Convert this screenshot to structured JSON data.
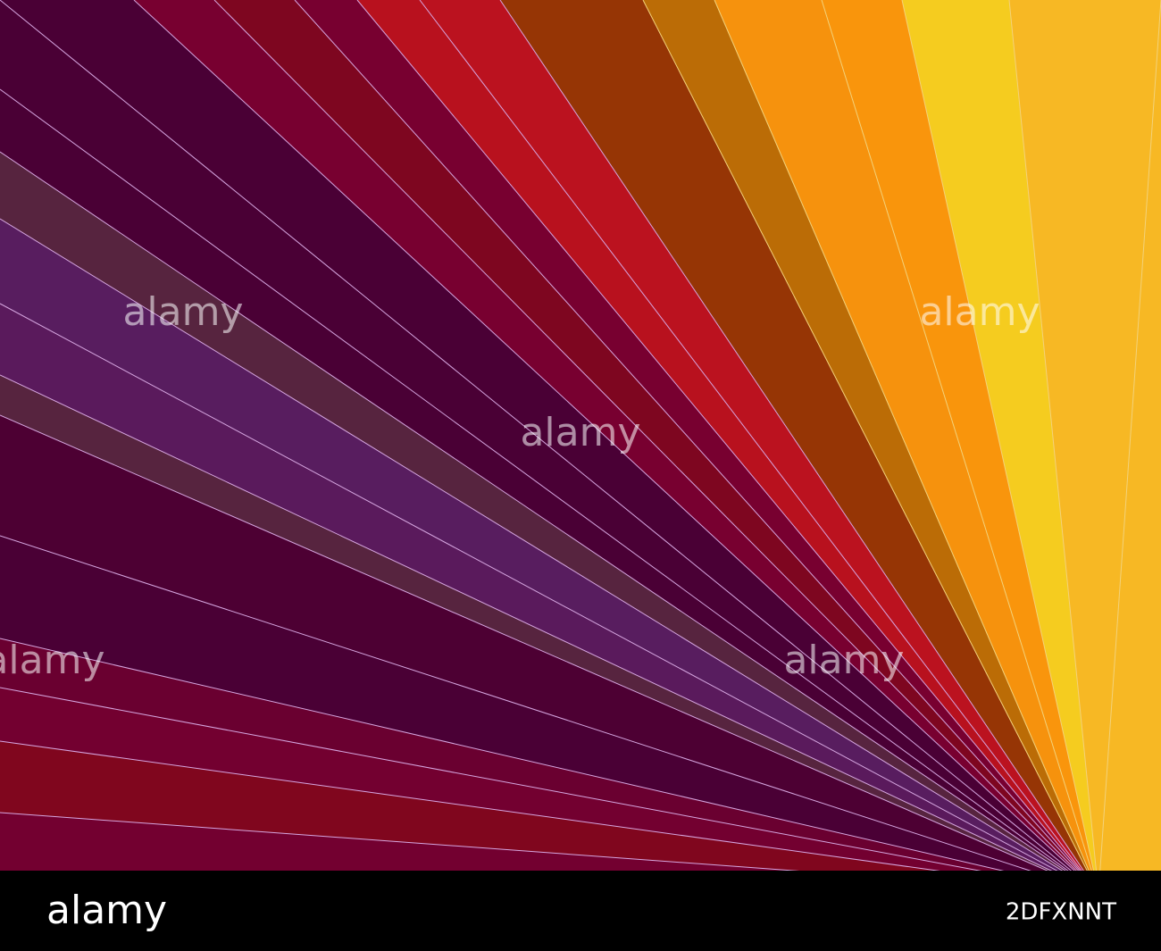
{
  "watermarks": [
    "alamy",
    "alamy",
    "alamy",
    "alamy",
    "alamy"
  ],
  "footer": {
    "logo": "alamy",
    "image_id": "2DFXNNT"
  }
}
